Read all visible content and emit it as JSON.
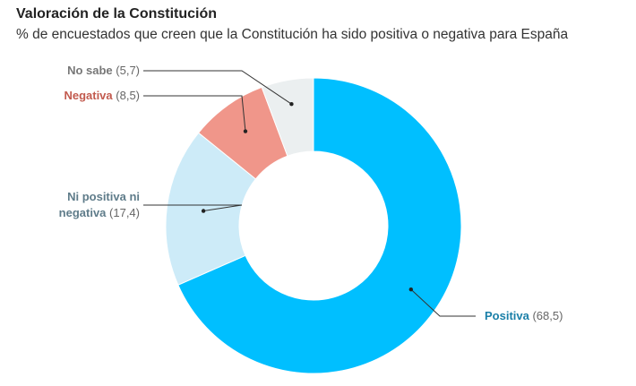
{
  "header": {
    "title": "Valoración de la Constitución",
    "subtitle": "% de encuestados que creen que la Constitución ha sido positiva o negativa para España"
  },
  "chart_data": {
    "type": "pie",
    "variant": "donut",
    "slices": [
      {
        "label": "Positiva",
        "value": 68.5,
        "display": "(68,5)",
        "color": "#00BFFF",
        "label_color": "#1A7FA8"
      },
      {
        "label": "Ni positiva ni negativa",
        "label_lines": [
          "Ni positiva ni",
          "negativa"
        ],
        "value": 17.4,
        "display": "(17,4)",
        "color": "#CDEBF8",
        "label_color": "#5F7C8A"
      },
      {
        "label": "Negativa",
        "value": 8.5,
        "display": "(8,5)",
        "color": "#F0968A",
        "label_color": "#C25A4E"
      },
      {
        "label": "No sabe",
        "value": 5.7,
        "display": "(5,7)",
        "color": "#EBEFF0",
        "label_color": "#777777"
      }
    ]
  }
}
